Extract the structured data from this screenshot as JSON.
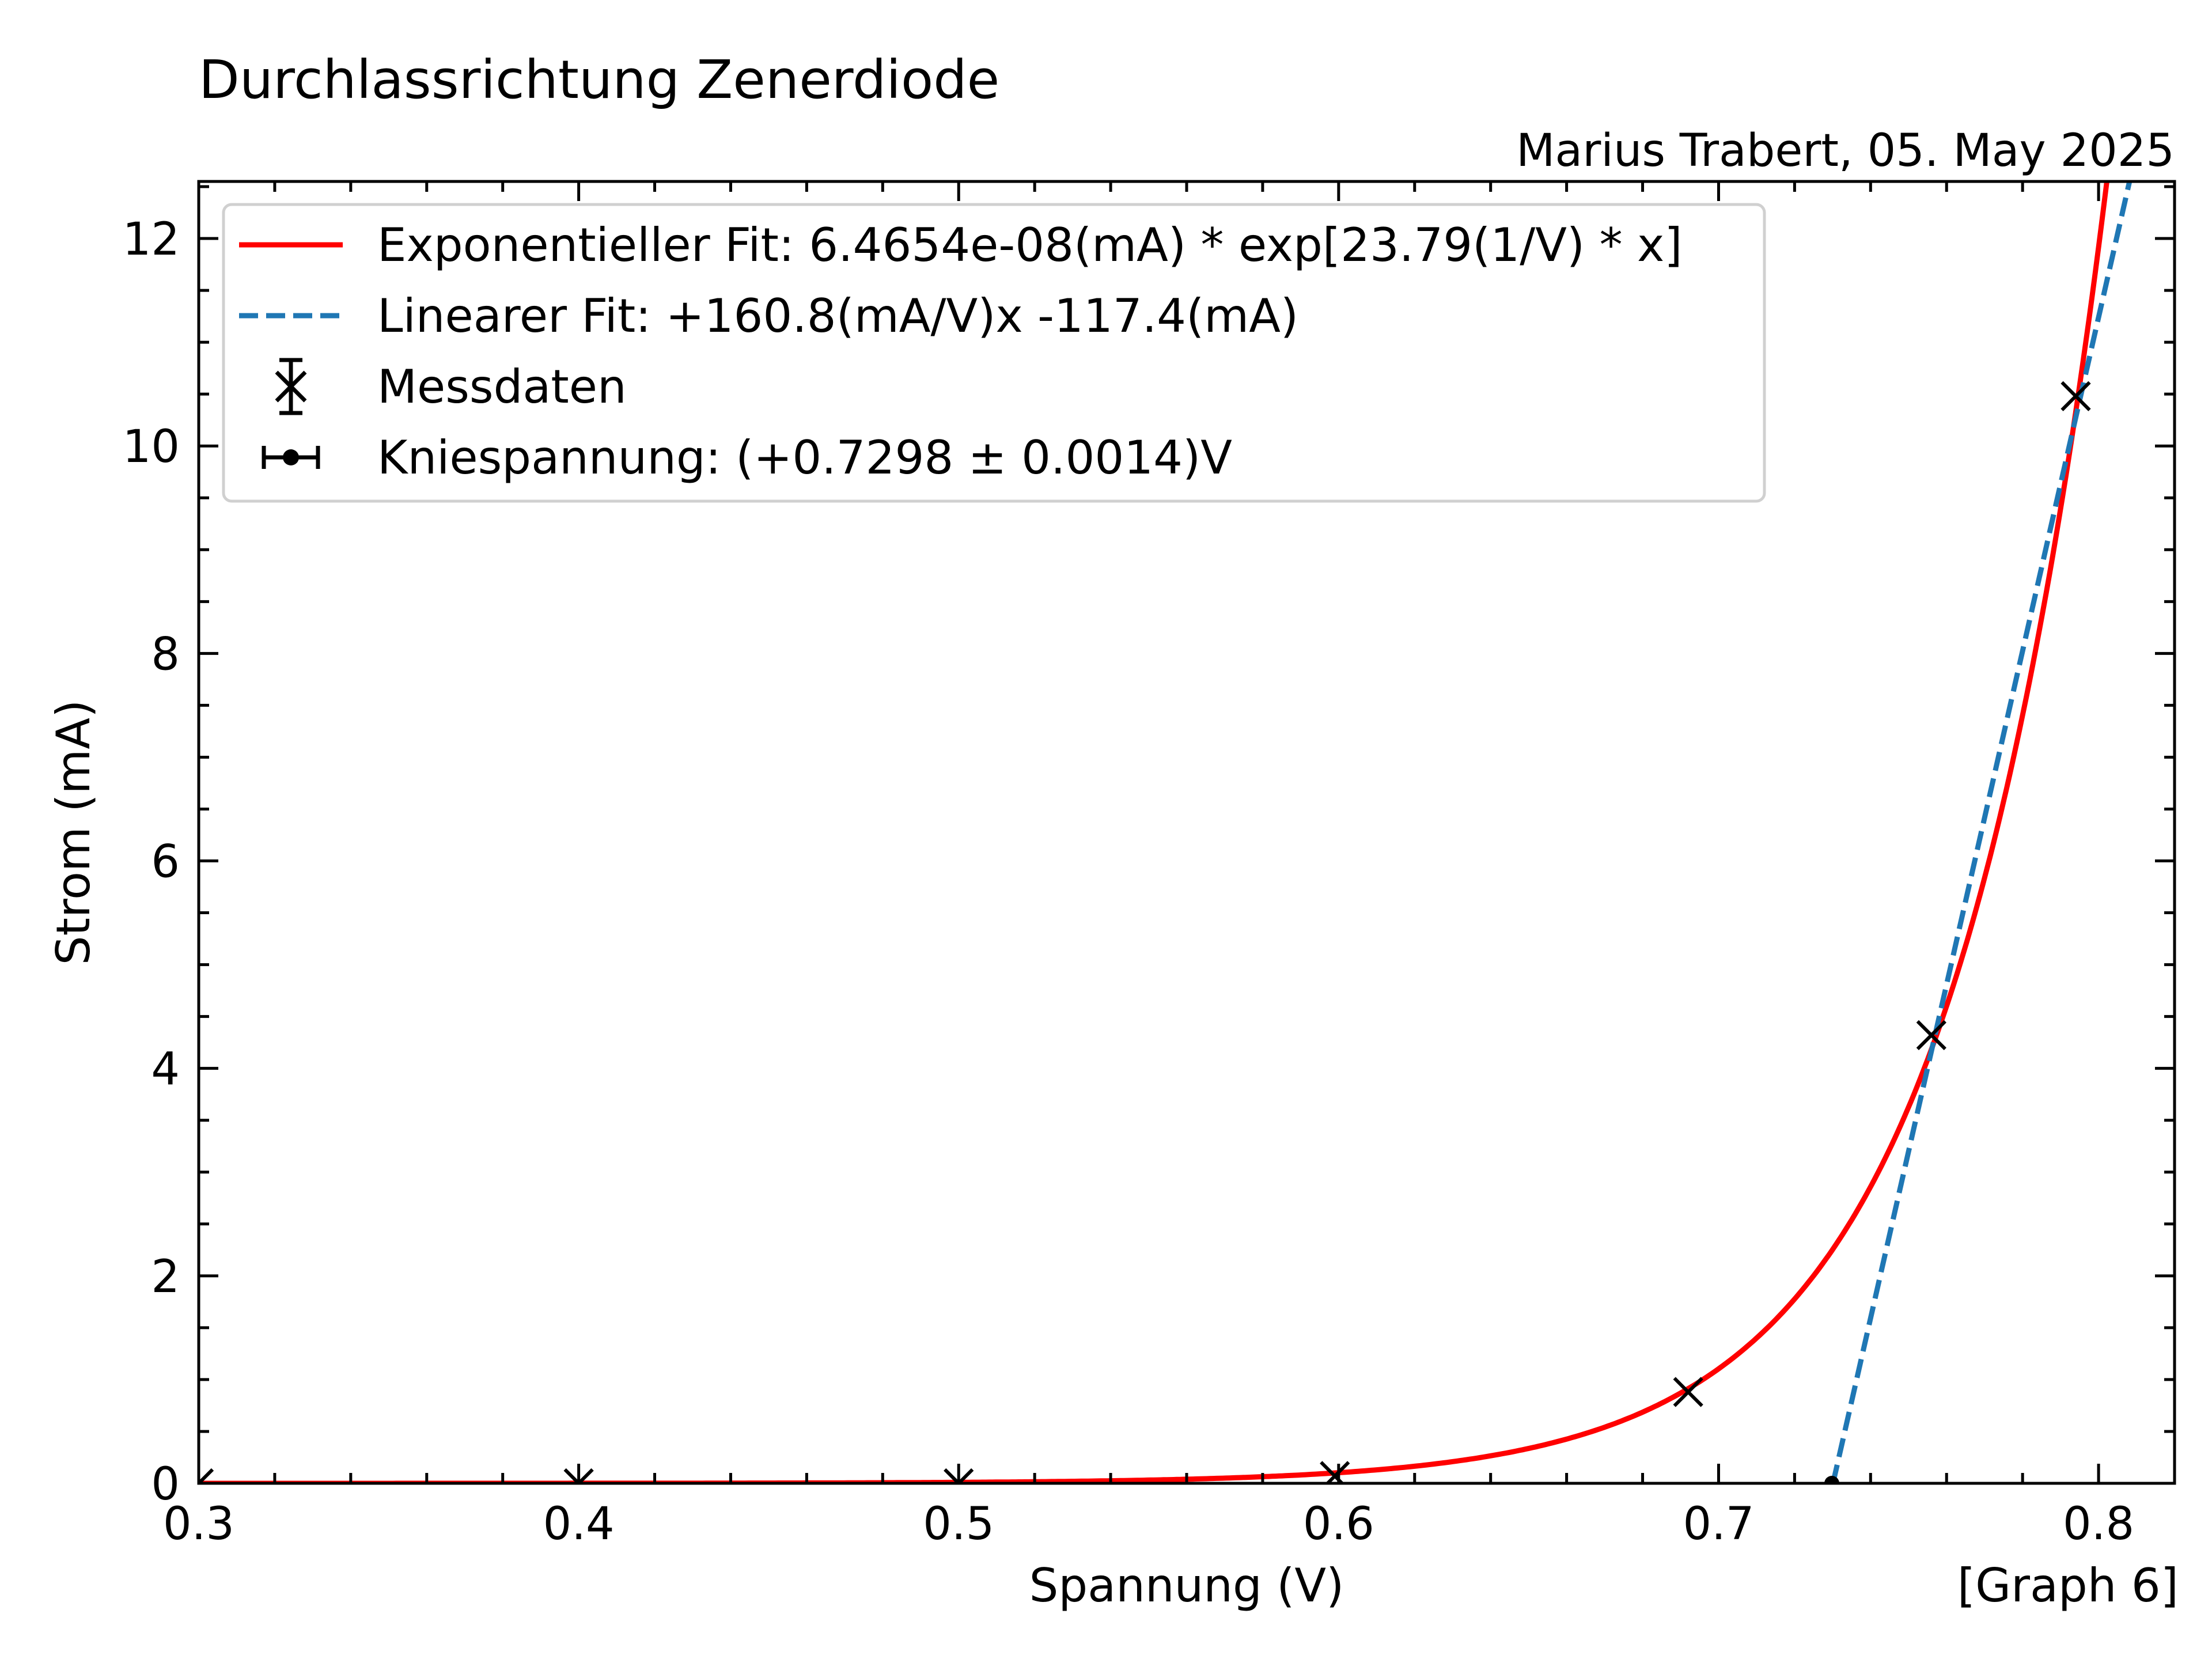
{
  "chart_data": {
    "type": "scatter",
    "title": "Durchlassrichtung Zenerdiode",
    "subtitle": "Marius Trabert, 05. May 2025",
    "graph_label": "[Graph 6]",
    "xlabel": "Spannung (V)",
    "ylabel": "Strom (mA)",
    "xlim": [
      0.3,
      0.82
    ],
    "ylim": [
      0,
      12.55
    ],
    "x_ticks": [
      0.3,
      0.4,
      0.5,
      0.6,
      0.7,
      0.8
    ],
    "x_tick_labels": [
      "0.3",
      "0.4",
      "0.5",
      "0.6",
      "0.7",
      "0.8"
    ],
    "y_ticks": [
      0,
      2,
      4,
      6,
      8,
      10,
      12
    ],
    "y_tick_labels": [
      "0",
      "2",
      "4",
      "6",
      "8",
      "10",
      "12"
    ],
    "grid": false,
    "legend_position": "upper-left",
    "series": [
      {
        "name": "Exponentieller Fit: 6.4654e-08(mA) * exp[23.79(1/V) * x]",
        "kind": "exp_fit",
        "a": 6.4654e-08,
        "b": 23.79,
        "color": "#ff0000"
      },
      {
        "name": "Linearer Fit:  +160.8(mA/V)x -117.4(mA)",
        "kind": "linear_fit",
        "slope": 160.8,
        "intercept": -117.4,
        "color": "#1f77b4"
      },
      {
        "name": "Messdaten",
        "kind": "measurement",
        "color": "#000000",
        "x": [
          0.3,
          0.4,
          0.5,
          0.599,
          0.692,
          0.756,
          0.794
        ],
        "y": [
          0.0,
          0.0,
          0.0,
          0.07,
          0.88,
          4.32,
          10.48
        ]
      },
      {
        "name": "Kniespannung: (+0.7298 ± 0.0014)V",
        "kind": "knee",
        "color": "#000000",
        "x": 0.7298,
        "xerr": 0.0014,
        "y": 0.0
      }
    ]
  }
}
